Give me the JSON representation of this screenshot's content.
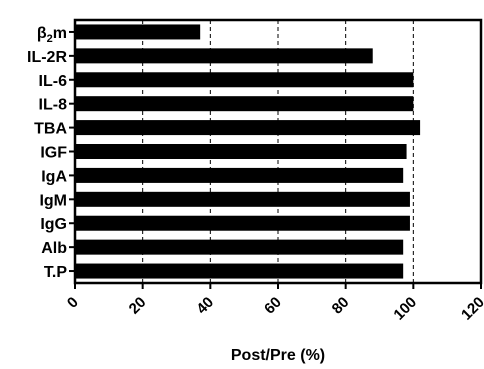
{
  "chart_data": {
    "type": "bar",
    "orientation": "horizontal",
    "categories": [
      "β2m",
      "IL-2R",
      "IL-6",
      "IL-8",
      "TBA",
      "IGF",
      "IgA",
      "IgM",
      "IgG",
      "Alb",
      "T.P"
    ],
    "values": [
      37,
      88,
      100,
      100,
      102,
      98,
      97,
      99,
      99,
      97,
      97
    ],
    "xlabel": "Post/Pre (%)",
    "ylabel": "",
    "xlim": [
      0,
      120
    ],
    "xticks": [
      0,
      20,
      40,
      60,
      80,
      100,
      120
    ],
    "grid": "vertical-dashed",
    "bar_color": "#000000"
  }
}
